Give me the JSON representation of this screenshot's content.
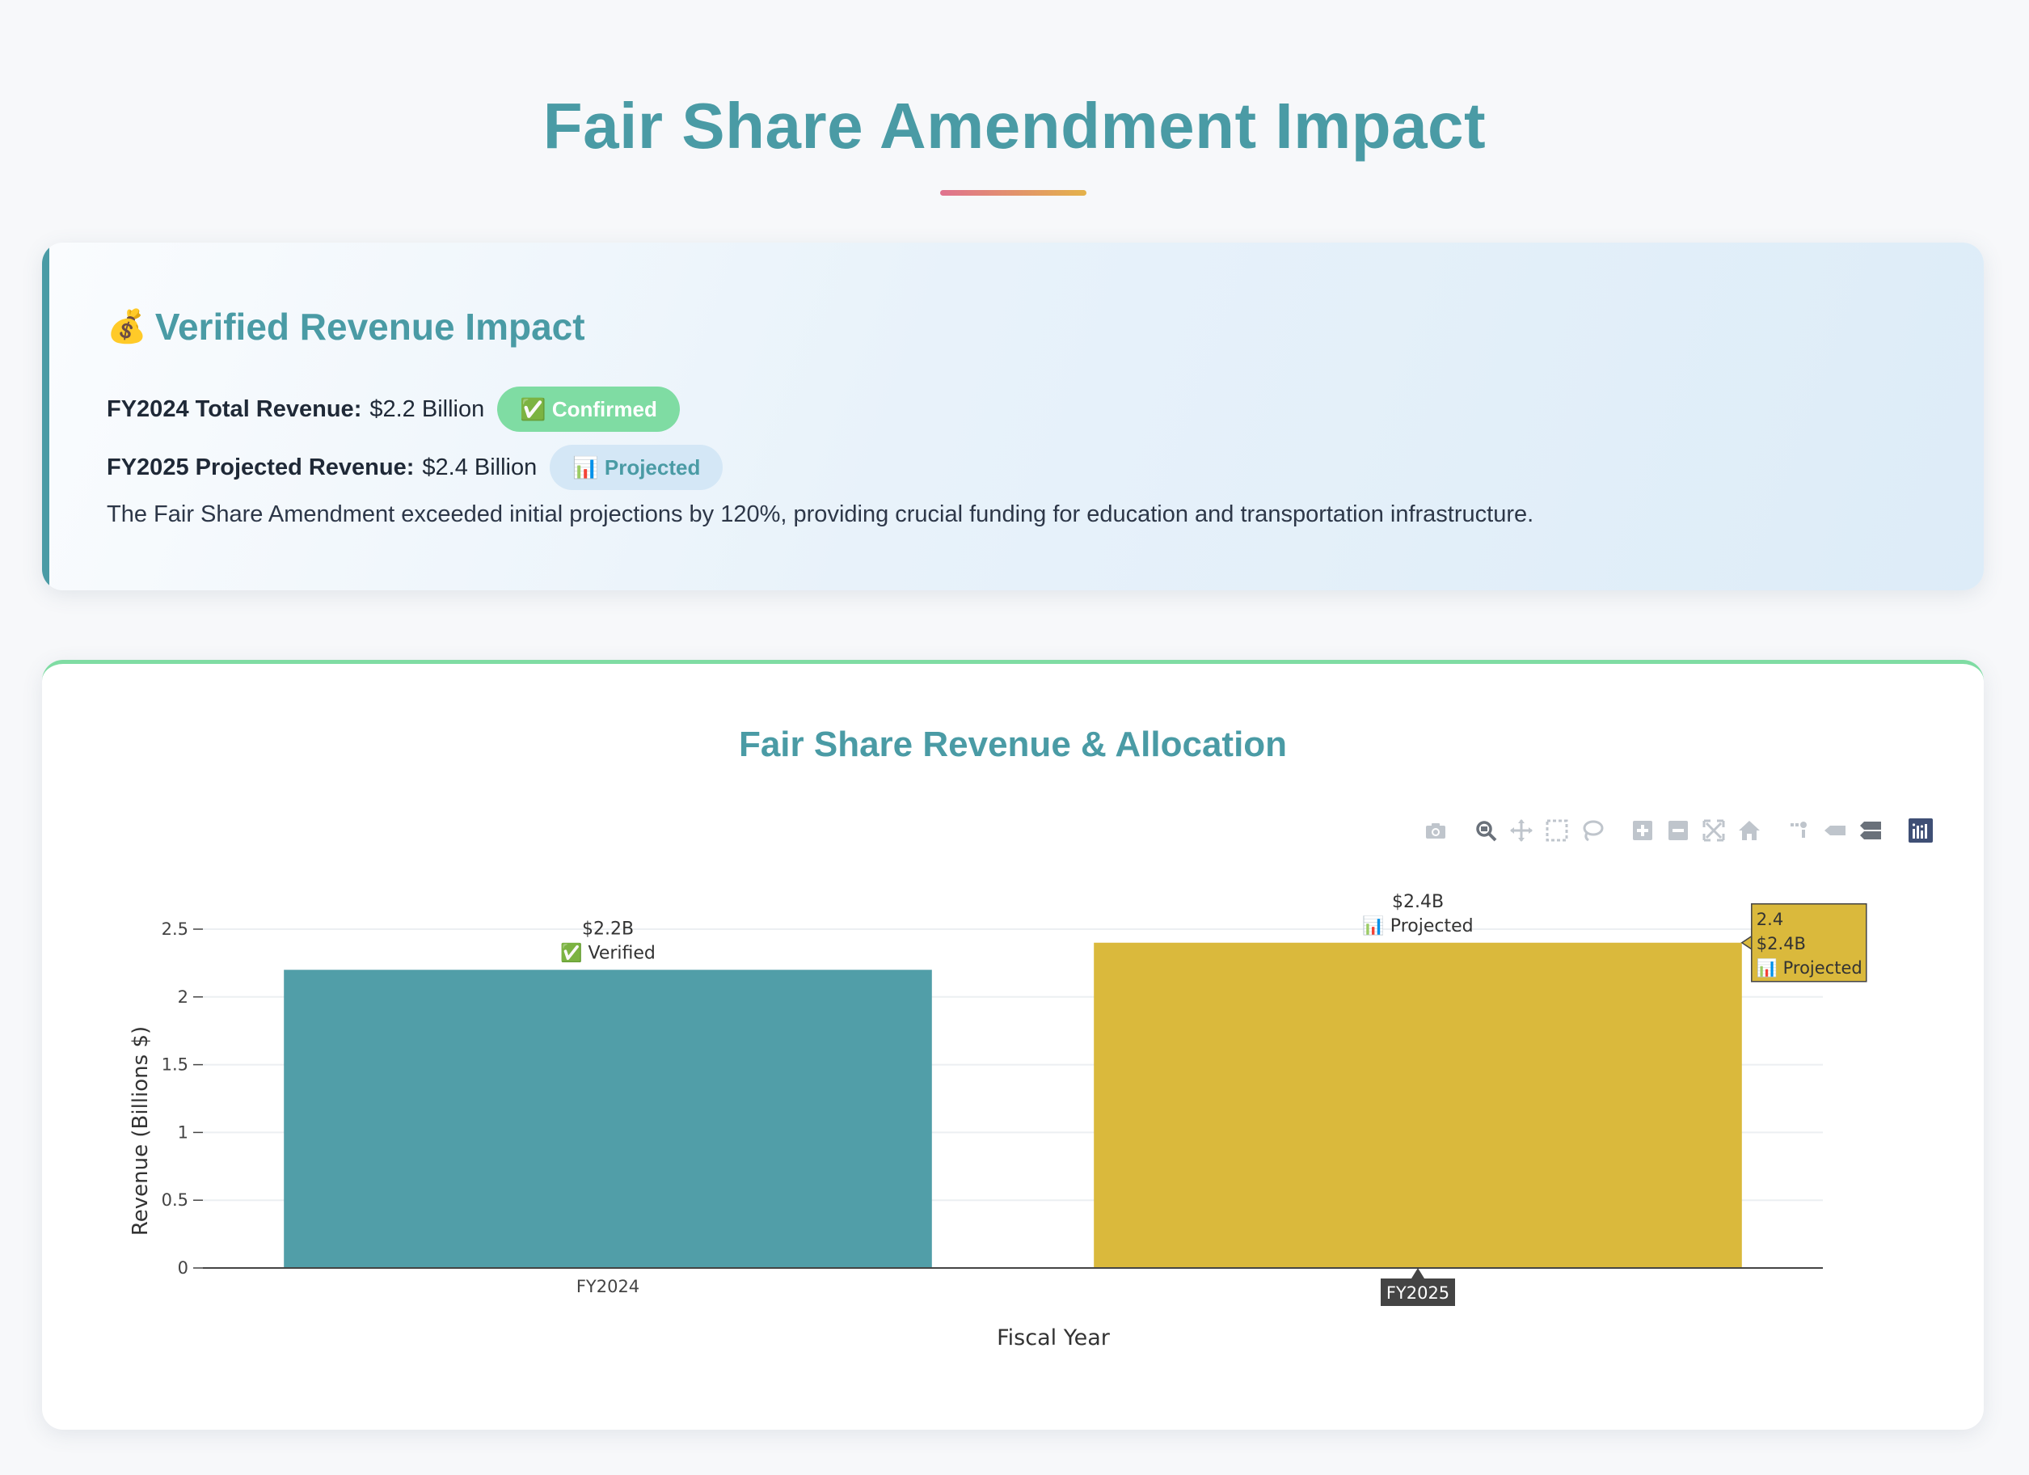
{
  "page": {
    "title": "Fair Share Amendment Impact"
  },
  "info": {
    "heading_icon": "money-bag",
    "heading_icon_glyph": "💰",
    "heading": "Verified Revenue Impact",
    "fy2024_label": "FY2024 Total Revenue:",
    "fy2024_value": "$2.2 Billion",
    "fy2024_badge": "✅ Confirmed",
    "fy2025_label": "FY2025 Projected Revenue:",
    "fy2025_value": "$2.4 Billion",
    "fy2025_badge": "📊 Projected",
    "description": "The Fair Share Amendment exceeded initial projections by 120%, providing crucial funding for education and transportation infrastructure."
  },
  "colors": {
    "accent": "#4a9ba5",
    "verified_bar": "#519ea8",
    "projected_bar": "#dab93c",
    "confirmed_badge": "#7fdca3",
    "projected_badge": "#d4e7f6"
  },
  "chart_data": {
    "type": "bar",
    "title": "Fair Share Revenue & Allocation",
    "xlabel": "Fiscal Year",
    "ylabel": "Revenue (Billions $)",
    "categories": [
      "FY2024",
      "FY2025"
    ],
    "values": [
      2.2,
      2.4
    ],
    "bar_labels": [
      [
        "$2.2B",
        "✅ Verified"
      ],
      [
        "$2.4B",
        "📊 Projected"
      ]
    ],
    "ylim": [
      0,
      2.5
    ],
    "yticks": [
      "0",
      "0.5",
      "1",
      "1.5",
      "2",
      "2.5"
    ],
    "grid": true,
    "hover": {
      "category": "FY2025",
      "lines": [
        "2.4",
        "$2.4B",
        "📊 Projected"
      ],
      "axis_label": "FY2025"
    }
  },
  "modebar": {
    "icons": [
      "camera-icon",
      "zoom-icon",
      "pan-icon",
      "box-select-icon",
      "lasso-icon",
      "zoom-in-icon",
      "zoom-out-icon",
      "autoscale-icon",
      "reset-axes-icon",
      "spike-lines-icon",
      "hover-closest-icon",
      "hover-compare-icon",
      "plotly-logo-icon"
    ]
  }
}
